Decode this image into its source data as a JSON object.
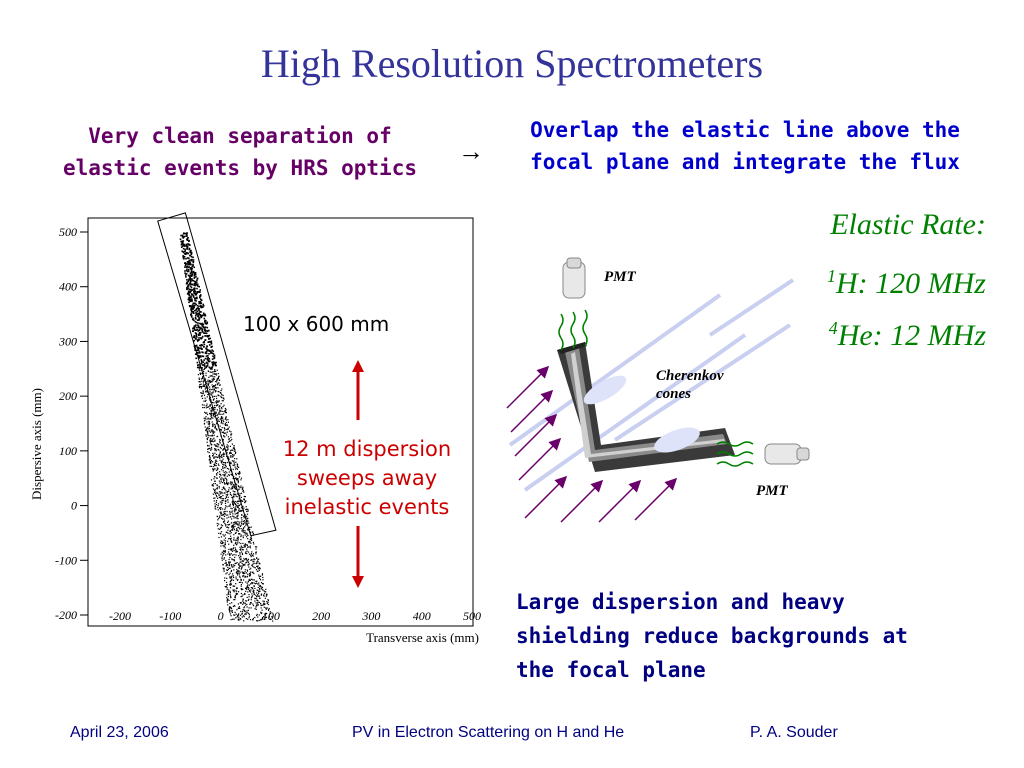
{
  "title": "High Resolution Spectrometers",
  "left_header": [
    "Very clean separation of",
    "elastic events by HRS optics"
  ],
  "arrow_glyph": "→",
  "right_header": [
    "Overlap the elastic line above the",
    "focal plane and integrate the flux"
  ],
  "elastic": {
    "heading": "Elastic Rate:",
    "h_mass": "1",
    "h_rate": "H: 120 MHz",
    "he_mass": "4",
    "he_rate": "He: 12 MHz"
  },
  "plot_annotations": {
    "box_label": "100 x 600 mm",
    "dispersion": [
      "12 m dispersion",
      "sweeps away",
      "inelastic events"
    ]
  },
  "diagram": {
    "pmt_top": "PMT",
    "pmt_right": "PMT",
    "cherenkov": [
      "Cherenkov",
      "cones"
    ]
  },
  "bottom_text": [
    "Large dispersion and heavy",
    "shielding reduce backgrounds at",
    "the focal plane"
  ],
  "footer": {
    "date": "April 23, 2006",
    "event": "PV in Electron Scattering on H and He",
    "author": "P. A. Souder"
  },
  "chart_data": {
    "type": "scatter",
    "title": "",
    "xlabel": "Transverse axis (mm)",
    "ylabel": "Dispersive axis (mm)",
    "xlim": [
      -200,
      500
    ],
    "ylim": [
      -200,
      500
    ],
    "xticks": [
      "-200",
      "-100",
      "0",
      "100",
      "200",
      "300",
      "400",
      "500"
    ],
    "yticks": [
      "500",
      "400",
      "300",
      "200",
      "100",
      "0",
      "-100",
      "-200"
    ],
    "description_band": {
      "x_at_top": -75,
      "y_top": 500,
      "x_at_bottom": 60,
      "y_bottom": -210
    },
    "acceptance_box_corners": [
      [
        -125,
        520
      ],
      [
        -70,
        535
      ],
      [
        110,
        -45
      ],
      [
        60,
        -55
      ]
    ]
  },
  "colors": {
    "title": "#333399",
    "purple": "#660066",
    "blue": "#0000cc",
    "green": "#008000",
    "red": "#cc0000",
    "footer": "#000080"
  }
}
